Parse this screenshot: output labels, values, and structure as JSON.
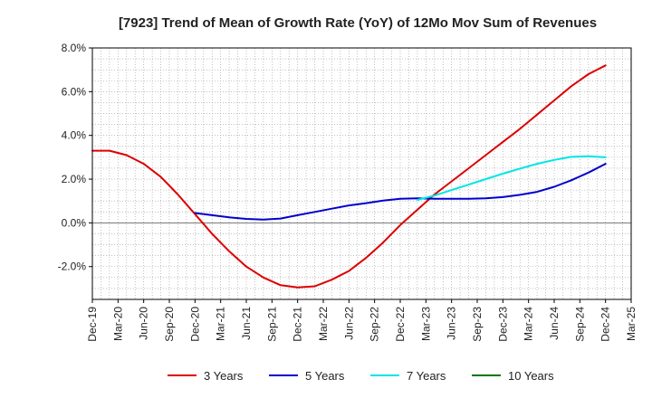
{
  "chart_data": {
    "type": "line",
    "title": "[7923]  Trend of Mean of Growth Rate (YoY) of 12Mo Mov Sum of Revenues",
    "xlabel": "",
    "ylabel": "",
    "ylim": [
      -3.5,
      8.0
    ],
    "yticks": [
      -2.0,
      0.0,
      2.0,
      4.0,
      6.0,
      8.0
    ],
    "ytick_labels": [
      "-2.0%",
      "0.0%",
      "2.0%",
      "4.0%",
      "6.0%",
      "8.0%"
    ],
    "x_categories": [
      "Dec-19",
      "Mar-20",
      "Jun-20",
      "Sep-20",
      "Dec-20",
      "Mar-21",
      "Jun-21",
      "Sep-21",
      "Dec-21",
      "Mar-22",
      "Jun-22",
      "Sep-22",
      "Dec-22",
      "Mar-23",
      "Jun-23",
      "Sep-23",
      "Dec-23",
      "Mar-24",
      "Jun-24",
      "Sep-24",
      "Dec-24",
      "Mar-25"
    ],
    "grid": true,
    "legend_position": "bottom",
    "series": [
      {
        "name": "3 Years",
        "color": "#dd0000",
        "x": [
          "Dec-19",
          "Feb-20",
          "Apr-20",
          "Jun-20",
          "Aug-20",
          "Oct-20",
          "Dec-20",
          "Feb-21",
          "Apr-21",
          "Jun-21",
          "Aug-21",
          "Oct-21",
          "Dec-21",
          "Feb-22",
          "Apr-22",
          "Jun-22",
          "Aug-22",
          "Oct-22",
          "Dec-22",
          "Feb-23",
          "Apr-23",
          "Jun-23",
          "Aug-23",
          "Oct-23",
          "Dec-23",
          "Feb-24",
          "Apr-24",
          "Jun-24",
          "Aug-24",
          "Oct-24",
          "Dec-24"
        ],
        "values": [
          3.3,
          3.3,
          3.1,
          2.7,
          2.1,
          1.3,
          0.4,
          -0.5,
          -1.3,
          -2.0,
          -2.5,
          -2.85,
          -2.95,
          -2.9,
          -2.6,
          -2.2,
          -1.6,
          -0.9,
          -0.1,
          0.6,
          1.3,
          1.9,
          2.5,
          3.1,
          3.7,
          4.3,
          4.95,
          5.6,
          6.25,
          6.8,
          7.2
        ]
      },
      {
        "name": "5 Years",
        "color": "#0000cc",
        "x": [
          "Dec-20",
          "Feb-21",
          "Apr-21",
          "Jun-21",
          "Aug-21",
          "Oct-21",
          "Dec-21",
          "Feb-22",
          "Apr-22",
          "Jun-22",
          "Aug-22",
          "Oct-22",
          "Dec-22",
          "Feb-23",
          "Apr-23",
          "Jun-23",
          "Aug-23",
          "Oct-23",
          "Dec-23",
          "Feb-24",
          "Apr-24",
          "Jun-24",
          "Aug-24",
          "Oct-24",
          "Dec-24"
        ],
        "values": [
          0.45,
          0.35,
          0.25,
          0.18,
          0.15,
          0.2,
          0.35,
          0.5,
          0.65,
          0.8,
          0.9,
          1.02,
          1.1,
          1.12,
          1.1,
          1.1,
          1.1,
          1.12,
          1.18,
          1.28,
          1.42,
          1.65,
          1.95,
          2.3,
          2.7
        ]
      },
      {
        "name": "7 Years",
        "color": "#00e5e5",
        "x": [
          "Feb-23",
          "Apr-23",
          "Jun-23",
          "Aug-23",
          "Oct-23",
          "Dec-23",
          "Feb-24",
          "Apr-24",
          "Jun-24",
          "Aug-24",
          "Oct-24",
          "Dec-24"
        ],
        "values": [
          1.05,
          1.25,
          1.5,
          1.75,
          2.0,
          2.25,
          2.48,
          2.7,
          2.88,
          3.02,
          3.05,
          3.0
        ]
      },
      {
        "name": "10 Years",
        "color": "#007700",
        "x": [],
        "values": []
      }
    ]
  }
}
